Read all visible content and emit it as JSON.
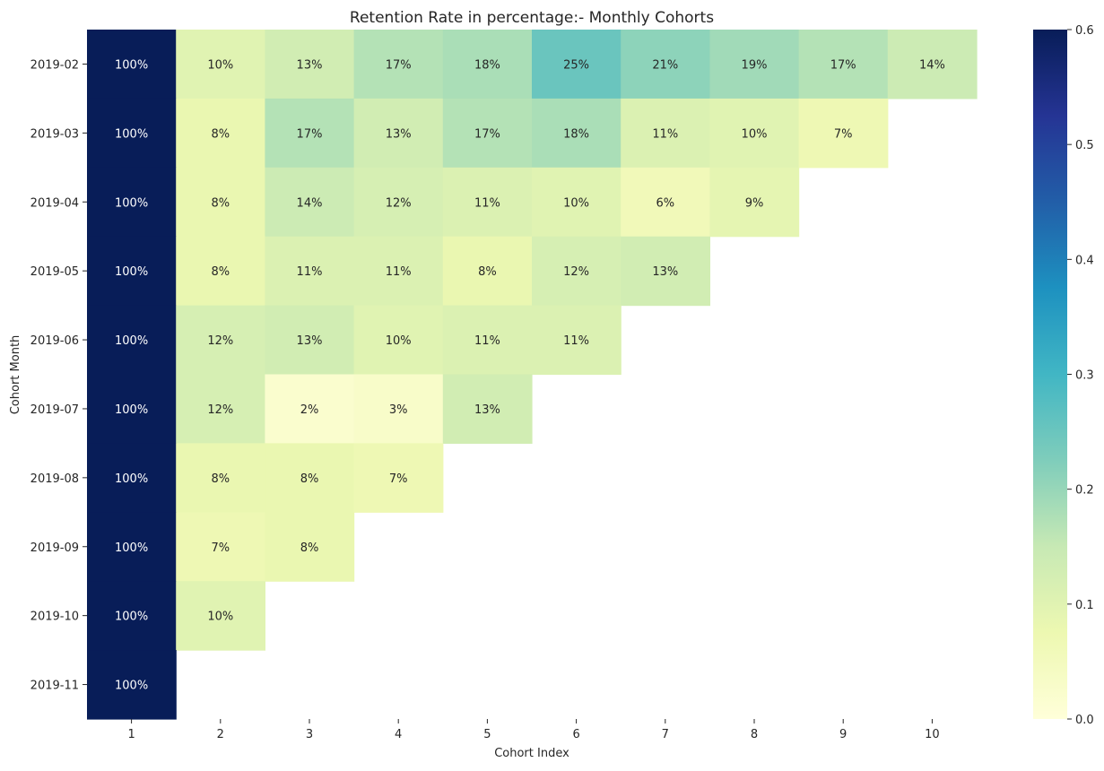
{
  "chart_data": {
    "type": "heatmap",
    "title": "Retention Rate in percentage:- Monthly Cohorts",
    "xlabel": "Cohort Index",
    "ylabel": "Cohort Month",
    "x_categories": [
      "1",
      "2",
      "3",
      "4",
      "5",
      "6",
      "7",
      "8",
      "9",
      "10"
    ],
    "y_categories": [
      "2019-02",
      "2019-03",
      "2019-04",
      "2019-05",
      "2019-06",
      "2019-07",
      "2019-08",
      "2019-09",
      "2019-10",
      "2019-11"
    ],
    "values": [
      [
        1.0,
        0.1,
        0.13,
        0.17,
        0.18,
        0.25,
        0.21,
        0.19,
        0.17,
        0.14
      ],
      [
        1.0,
        0.08,
        0.17,
        0.13,
        0.17,
        0.18,
        0.11,
        0.1,
        0.07,
        null
      ],
      [
        1.0,
        0.08,
        0.14,
        0.12,
        0.11,
        0.1,
        0.06,
        0.09,
        null,
        null
      ],
      [
        1.0,
        0.08,
        0.11,
        0.11,
        0.08,
        0.12,
        0.13,
        null,
        null,
        null
      ],
      [
        1.0,
        0.12,
        0.13,
        0.1,
        0.11,
        0.11,
        null,
        null,
        null,
        null
      ],
      [
        1.0,
        0.12,
        0.02,
        0.03,
        0.13,
        null,
        null,
        null,
        null,
        null
      ],
      [
        1.0,
        0.08,
        0.08,
        0.07,
        null,
        null,
        null,
        null,
        null,
        null
      ],
      [
        1.0,
        0.07,
        0.08,
        null,
        null,
        null,
        null,
        null,
        null,
        null
      ],
      [
        1.0,
        0.1,
        null,
        null,
        null,
        null,
        null,
        null,
        null,
        null
      ],
      [
        1.0,
        null,
        null,
        null,
        null,
        null,
        null,
        null,
        null,
        null
      ]
    ],
    "labels": [
      [
        "100%",
        "10%",
        "13%",
        "17%",
        "18%",
        "25%",
        "21%",
        "19%",
        "17%",
        "14%"
      ],
      [
        "100%",
        "8%",
        "17%",
        "13%",
        "17%",
        "18%",
        "11%",
        "10%",
        "7%",
        null
      ],
      [
        "100%",
        "8%",
        "14%",
        "12%",
        "11%",
        "10%",
        "6%",
        "9%",
        null,
        null
      ],
      [
        "100%",
        "8%",
        "11%",
        "11%",
        "8%",
        "12%",
        "13%",
        null,
        null,
        null
      ],
      [
        "100%",
        "12%",
        "13%",
        "10%",
        "11%",
        "11%",
        null,
        null,
        null,
        null
      ],
      [
        "100%",
        "12%",
        "2%",
        "3%",
        "13%",
        null,
        null,
        null,
        null,
        null
      ],
      [
        "100%",
        "8%",
        "8%",
        "7%",
        null,
        null,
        null,
        null,
        null,
        null
      ],
      [
        "100%",
        "7%",
        "8%",
        null,
        null,
        null,
        null,
        null,
        null,
        null
      ],
      [
        "100%",
        "10%",
        null,
        null,
        null,
        null,
        null,
        null,
        null,
        null
      ],
      [
        "100%",
        null,
        null,
        null,
        null,
        null,
        null,
        null,
        null,
        null
      ]
    ],
    "colorscale": "YlGnBu",
    "vmin": 0.0,
    "vmax": 0.6,
    "colorbar_ticks": [
      "0.0",
      "0.1",
      "0.2",
      "0.3",
      "0.4",
      "0.5",
      "0.6"
    ],
    "grid": false
  }
}
